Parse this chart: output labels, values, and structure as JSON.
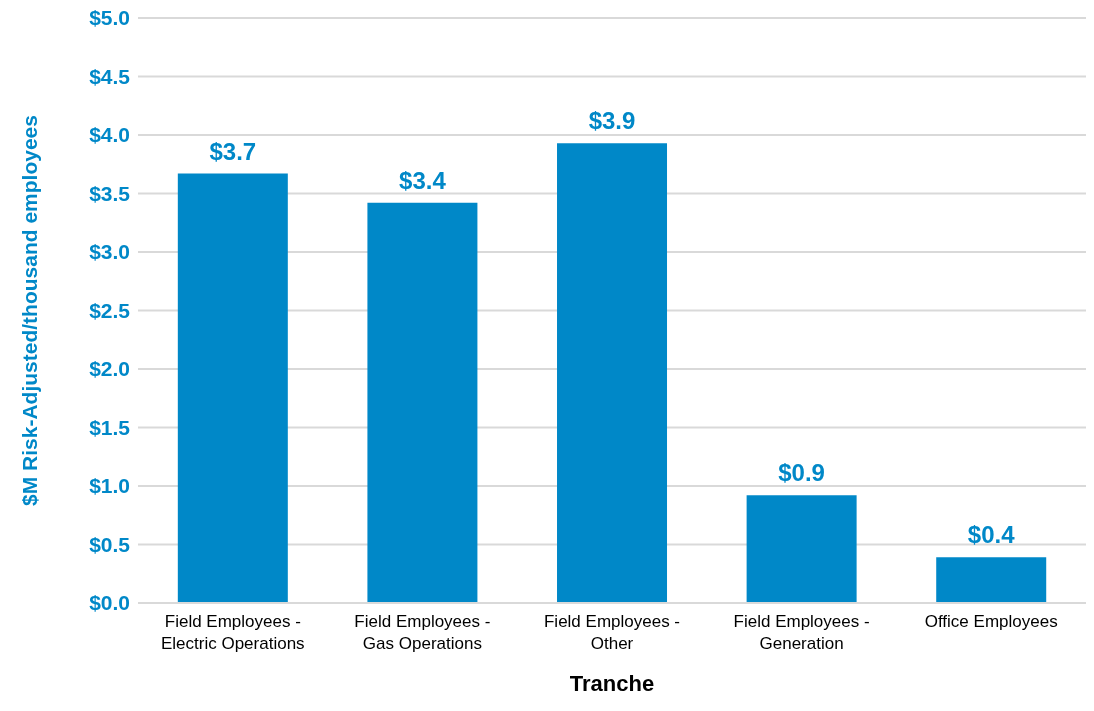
{
  "chart_data": {
    "type": "bar",
    "xlabel": "Tranche",
    "ylabel": "$M Risk-Adjusted/thousand employees",
    "categories": [
      "Field Employees - Electric Operations",
      "Field Employees - Gas Operations",
      "Field Employees - Other",
      "Field Employees - Generation",
      "Office Employees"
    ],
    "values": [
      3.67,
      3.42,
      3.93,
      0.92,
      0.39
    ],
    "value_labels": [
      "$3.7",
      "$3.4",
      "$3.9",
      "$0.9",
      "$0.4"
    ],
    "color": "#0088c8",
    "ylim": [
      0,
      5
    ],
    "yticks": [
      {
        "value": 0,
        "label": "$0.0"
      },
      {
        "value": 0.5,
        "label": "$0.5"
      },
      {
        "value": 1,
        "label": "$1.0"
      },
      {
        "value": 1.5,
        "label": "$1.5"
      },
      {
        "value": 2,
        "label": "$2.0"
      },
      {
        "value": 2.5,
        "label": "$2.5"
      },
      {
        "value": 3,
        "label": "$3.0"
      },
      {
        "value": 3.5,
        "label": "$3.5"
      },
      {
        "value": 4,
        "label": "$4.0"
      },
      {
        "value": 4.5,
        "label": "$4.5"
      },
      {
        "value": 5,
        "label": "$5.0"
      }
    ],
    "grid": "y",
    "legend": false
  }
}
